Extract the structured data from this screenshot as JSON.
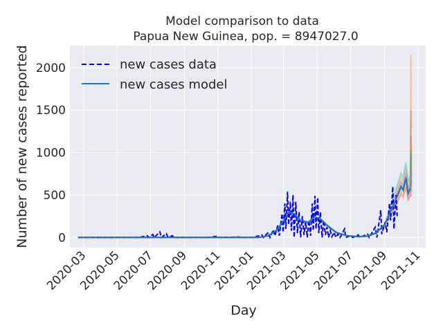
{
  "chart_data": {
    "type": "line",
    "title": "Model comparison to data",
    "subtitle": "Papua New Guinea, pop. = 8947027.0",
    "xlabel": "Day",
    "ylabel": "Number of new cases reported",
    "x_tick_labels": [
      "2020-03",
      "2020-05",
      "2020-07",
      "2020-09",
      "2020-11",
      "2021-01",
      "2021-03",
      "2021-05",
      "2021-07",
      "2021-09",
      "2021-11"
    ],
    "x_ticks": [
      "2020-03-01",
      "2020-05-01",
      "2020-07-01",
      "2020-09-01",
      "2020-11-01",
      "2021-01-01",
      "2021-03-01",
      "2021-05-01",
      "2021-07-01",
      "2021-09-01",
      "2021-11-01"
    ],
    "xlim": [
      "2020-02-05",
      "2021-11-15"
    ],
    "y_ticks": [
      0,
      500,
      1000,
      1500,
      2000
    ],
    "ylim": [
      -120,
      2260
    ],
    "grid": true,
    "legend_position": "top-left",
    "series": [
      {
        "name": "new cases data",
        "style": "dashed",
        "color": "#0000ee",
        "points": [
          [
            "2020-02-20",
            0
          ],
          [
            "2020-06-10",
            0
          ],
          [
            "2020-06-25",
            20
          ],
          [
            "2020-06-28",
            0
          ],
          [
            "2020-07-05",
            35
          ],
          [
            "2020-07-08",
            0
          ],
          [
            "2020-07-18",
            65
          ],
          [
            "2020-07-21",
            0
          ],
          [
            "2020-07-30",
            45
          ],
          [
            "2020-08-02",
            0
          ],
          [
            "2020-08-10",
            20
          ],
          [
            "2020-08-13",
            0
          ],
          [
            "2020-10-15",
            0
          ],
          [
            "2020-11-01",
            15
          ],
          [
            "2020-11-03",
            0
          ],
          [
            "2020-12-10",
            5
          ],
          [
            "2020-12-12",
            0
          ],
          [
            "2021-01-05",
            0
          ],
          [
            "2021-01-20",
            30
          ],
          [
            "2021-01-23",
            0
          ],
          [
            "2021-02-01",
            60
          ],
          [
            "2021-02-04",
            0
          ],
          [
            "2021-02-10",
            90
          ],
          [
            "2021-02-13",
            20
          ],
          [
            "2021-02-18",
            140
          ],
          [
            "2021-02-21",
            20
          ],
          [
            "2021-02-26",
            280
          ],
          [
            "2021-02-28",
            60
          ],
          [
            "2021-03-03",
            400
          ],
          [
            "2021-03-05",
            100
          ],
          [
            "2021-03-08",
            540
          ],
          [
            "2021-03-10",
            150
          ],
          [
            "2021-03-13",
            420
          ],
          [
            "2021-03-15",
            80
          ],
          [
            "2021-03-18",
            500
          ],
          [
            "2021-03-20",
            0
          ],
          [
            "2021-03-23",
            420
          ],
          [
            "2021-03-26",
            50
          ],
          [
            "2021-03-29",
            300
          ],
          [
            "2021-04-01",
            0
          ],
          [
            "2021-04-04",
            250
          ],
          [
            "2021-04-07",
            30
          ],
          [
            "2021-04-10",
            180
          ],
          [
            "2021-04-13",
            0
          ],
          [
            "2021-04-16",
            200
          ],
          [
            "2021-04-19",
            20
          ],
          [
            "2021-04-22",
            400
          ],
          [
            "2021-04-24",
            80
          ],
          [
            "2021-04-27",
            490
          ],
          [
            "2021-04-29",
            100
          ],
          [
            "2021-05-02",
            470
          ],
          [
            "2021-05-04",
            50
          ],
          [
            "2021-05-07",
            300
          ],
          [
            "2021-05-10",
            0
          ],
          [
            "2021-05-13",
            200
          ],
          [
            "2021-05-16",
            30
          ],
          [
            "2021-05-19",
            120
          ],
          [
            "2021-05-22",
            0
          ],
          [
            "2021-05-25",
            80
          ],
          [
            "2021-05-28",
            10
          ],
          [
            "2021-06-01",
            60
          ],
          [
            "2021-06-04",
            0
          ],
          [
            "2021-06-08",
            40
          ],
          [
            "2021-06-12",
            0
          ],
          [
            "2021-06-20",
            100
          ],
          [
            "2021-06-22",
            0
          ],
          [
            "2021-07-01",
            20
          ],
          [
            "2021-07-05",
            0
          ],
          [
            "2021-07-15",
            30
          ],
          [
            "2021-07-18",
            0
          ],
          [
            "2021-08-01",
            40
          ],
          [
            "2021-08-04",
            0
          ],
          [
            "2021-08-15",
            120
          ],
          [
            "2021-08-18",
            0
          ],
          [
            "2021-08-25",
            320
          ],
          [
            "2021-08-27",
            40
          ],
          [
            "2021-09-02",
            180
          ],
          [
            "2021-09-05",
            60
          ],
          [
            "2021-09-10",
            400
          ],
          [
            "2021-09-12",
            200
          ],
          [
            "2021-09-16",
            600
          ],
          [
            "2021-09-18",
            100
          ],
          [
            "2021-09-22",
            500
          ],
          [
            "2021-09-24",
            250
          ]
        ]
      },
      {
        "name": "new cases model",
        "style": "solid",
        "color": "#1f77b4",
        "points": [
          [
            "2020-02-20",
            0
          ],
          [
            "2021-01-15",
            0
          ],
          [
            "2021-02-01",
            20
          ],
          [
            "2021-02-15",
            80
          ],
          [
            "2021-03-01",
            200
          ],
          [
            "2021-03-10",
            300
          ],
          [
            "2021-03-20",
            280
          ],
          [
            "2021-04-01",
            200
          ],
          [
            "2021-04-15",
            180
          ],
          [
            "2021-04-25",
            240
          ],
          [
            "2021-05-05",
            230
          ],
          [
            "2021-05-20",
            140
          ],
          [
            "2021-06-05",
            60
          ],
          [
            "2021-06-25",
            20
          ],
          [
            "2021-07-15",
            10
          ],
          [
            "2021-08-01",
            15
          ],
          [
            "2021-08-15",
            50
          ],
          [
            "2021-09-01",
            150
          ],
          [
            "2021-09-15",
            350
          ],
          [
            "2021-09-25",
            500
          ],
          [
            "2021-10-01",
            600
          ],
          [
            "2021-10-05",
            560
          ],
          [
            "2021-10-10",
            700
          ],
          [
            "2021-10-14",
            520
          ],
          [
            "2021-10-18",
            580
          ]
        ]
      }
    ]
  }
}
